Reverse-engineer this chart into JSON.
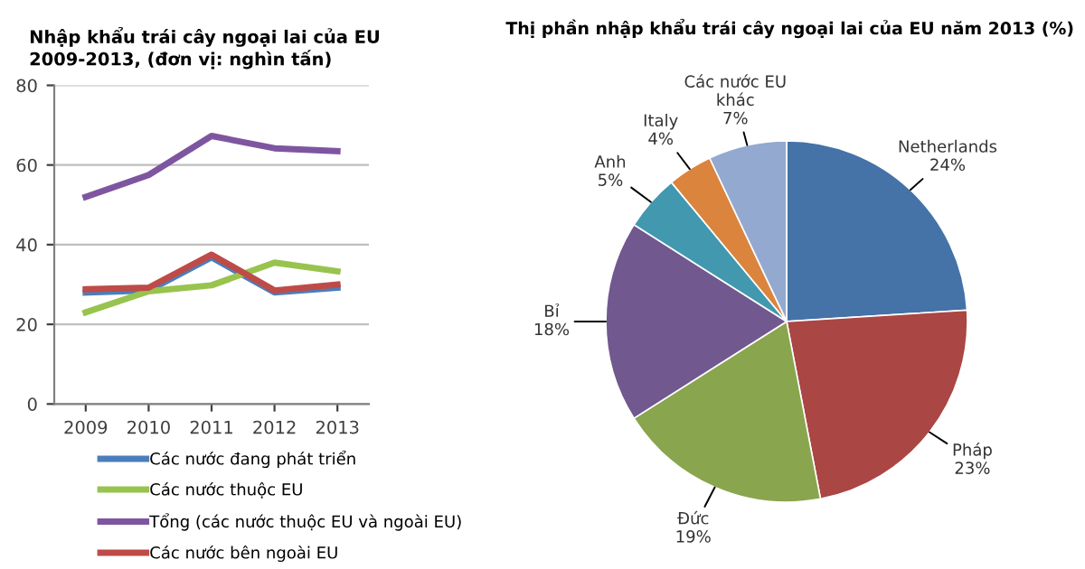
{
  "chart_data": [
    {
      "type": "line",
      "title": "Nhập khẩu trái cây ngoại lai của EU\n2009-2013, (đơn vị: nghìn tấn)",
      "categories": [
        "2009",
        "2010",
        "2011",
        "2012",
        "2013"
      ],
      "series": [
        {
          "name": "Các nước đang phát triển",
          "color": "#4a7ebb",
          "values": [
            28,
            28.5,
            36.8,
            28,
            29.2
          ]
        },
        {
          "name": "Các nước thuộc EU",
          "color": "#98c34e",
          "values": [
            23,
            28.3,
            29.8,
            35.5,
            33.3
          ]
        },
        {
          "name": "Tổng (các nước thuộc EU và ngoài EU)",
          "color": "#7e56a0",
          "values": [
            52,
            57.5,
            67.3,
            64.2,
            63.5
          ]
        },
        {
          "name": "Các nước bên ngoài EU",
          "color": "#be4b48",
          "values": [
            28.8,
            29.2,
            37.5,
            28.5,
            30
          ]
        }
      ],
      "ylim": [
        0,
        80
      ],
      "yticks": [
        0,
        20,
        40,
        60,
        80
      ],
      "grid": "y",
      "legend": "bottom",
      "marker": "none",
      "line_style": "solid"
    },
    {
      "type": "pie",
      "title": "Thị phần nhập khẩu trái cây ngoại lai của EU năm 2013 (%)",
      "categories": [
        "Netherlands",
        "Pháp",
        "Đức",
        "Bỉ",
        "Anh",
        "Italy",
        "Các nước EU\nkhác"
      ],
      "values": [
        24,
        23,
        19,
        18,
        5,
        4,
        7
      ],
      "value_labels": [
        "24%",
        "23%",
        "19%",
        "18%",
        "5%",
        "4%",
        "7%"
      ],
      "colors": [
        "#4572a7",
        "#aa4643",
        "#89a54e",
        "#71588f",
        "#4198af",
        "#db843d",
        "#93a9cf"
      ]
    }
  ]
}
